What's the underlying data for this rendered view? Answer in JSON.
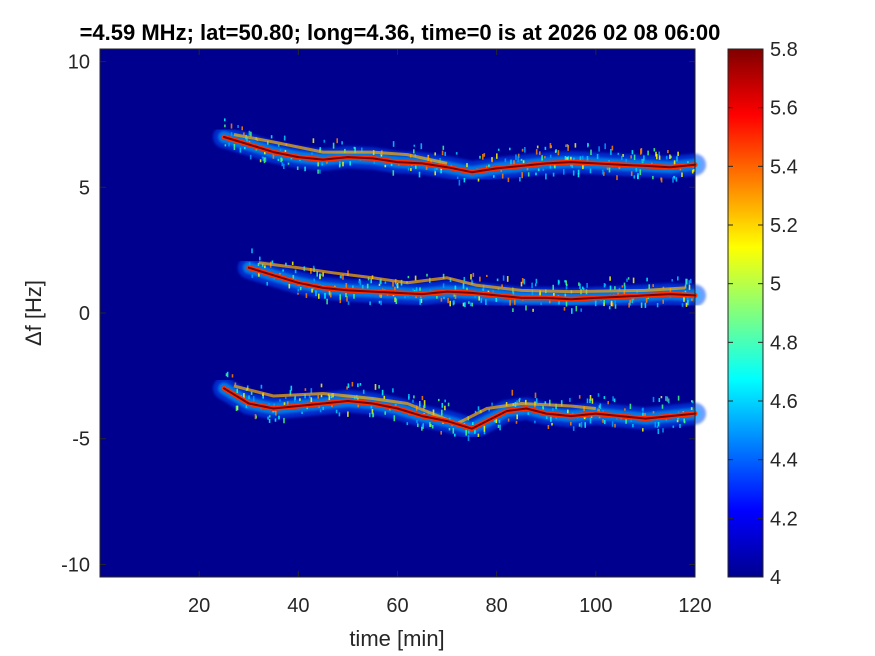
{
  "chart_data": {
    "type": "heatmap",
    "title": "=4.59 MHz;  lat=50.80; long=4.36, time=0 is at 2026 02 08 06:00",
    "xlabel": "time [min]",
    "ylabel": "Δf [Hz]",
    "xlim": [
      0,
      120
    ],
    "ylim": [
      -10.5,
      10.5
    ],
    "xticks": [
      20,
      40,
      60,
      80,
      100,
      120
    ],
    "yticks": [
      10,
      5,
      0,
      -5,
      -10
    ],
    "colorbar": {
      "colormap": "jet",
      "range": [
        4,
        5.8
      ],
      "ticks": [
        5.8,
        5.6,
        5.4,
        5.2,
        5,
        4.8,
        4.6,
        4.4,
        4.2,
        4
      ]
    },
    "background_color": "#00008f",
    "traces": [
      {
        "name": "",
        "start": 25,
        "end": 120,
        "points": [
          [
            25,
            7.0
          ],
          [
            30,
            6.7
          ],
          [
            35,
            6.4
          ],
          [
            40,
            6.2
          ],
          [
            45,
            6.1
          ],
          [
            50,
            6.2
          ],
          [
            55,
            6.15
          ],
          [
            60,
            6.0
          ],
          [
            65,
            5.95
          ],
          [
            70,
            5.8
          ],
          [
            75,
            5.6
          ],
          [
            80,
            5.75
          ],
          [
            85,
            5.85
          ],
          [
            90,
            5.95
          ],
          [
            95,
            6.0
          ],
          [
            100,
            5.95
          ],
          [
            105,
            5.9
          ],
          [
            110,
            5.85
          ],
          [
            115,
            5.8
          ],
          [
            120,
            5.9
          ]
        ],
        "secondary_points": [
          [
            27,
            7.1
          ],
          [
            35,
            6.8
          ],
          [
            45,
            6.4
          ],
          [
            55,
            6.4
          ],
          [
            62,
            6.3
          ],
          [
            70,
            5.95
          ]
        ]
      },
      {
        "name": "",
        "start": 30,
        "end": 120,
        "points": [
          [
            30,
            1.8
          ],
          [
            35,
            1.5
          ],
          [
            40,
            1.2
          ],
          [
            45,
            1.0
          ],
          [
            50,
            0.9
          ],
          [
            55,
            0.85
          ],
          [
            60,
            0.8
          ],
          [
            65,
            0.75
          ],
          [
            70,
            0.85
          ],
          [
            75,
            0.8
          ],
          [
            80,
            0.7
          ],
          [
            85,
            0.6
          ],
          [
            90,
            0.6
          ],
          [
            95,
            0.55
          ],
          [
            100,
            0.6
          ],
          [
            105,
            0.65
          ],
          [
            110,
            0.7
          ],
          [
            115,
            0.75
          ],
          [
            120,
            0.7
          ]
        ],
        "secondary_points": [
          [
            32,
            2.0
          ],
          [
            40,
            1.8
          ],
          [
            47,
            1.6
          ],
          [
            55,
            1.4
          ],
          [
            62,
            1.2
          ],
          [
            70,
            1.4
          ],
          [
            76,
            1.1
          ],
          [
            85,
            0.9
          ],
          [
            95,
            0.85
          ],
          [
            110,
            0.9
          ],
          [
            118,
            1.0
          ]
        ]
      },
      {
        "name": "",
        "start": 25,
        "end": 120,
        "points": [
          [
            25,
            -3.0
          ],
          [
            30,
            -3.6
          ],
          [
            35,
            -3.8
          ],
          [
            40,
            -3.7
          ],
          [
            45,
            -3.6
          ],
          [
            50,
            -3.5
          ],
          [
            55,
            -3.6
          ],
          [
            60,
            -3.8
          ],
          [
            65,
            -4.1
          ],
          [
            70,
            -4.3
          ],
          [
            75,
            -4.6
          ],
          [
            78,
            -4.3
          ],
          [
            82,
            -3.9
          ],
          [
            86,
            -3.8
          ],
          [
            90,
            -4.0
          ],
          [
            95,
            -4.1
          ],
          [
            100,
            -4.0
          ],
          [
            105,
            -4.1
          ],
          [
            110,
            -4.2
          ],
          [
            115,
            -4.1
          ],
          [
            120,
            -4.0
          ]
        ],
        "secondary_points": [
          [
            27,
            -2.9
          ],
          [
            35,
            -3.3
          ],
          [
            45,
            -3.2
          ],
          [
            55,
            -3.4
          ],
          [
            62,
            -3.6
          ],
          [
            72,
            -4.4
          ],
          [
            78,
            -3.8
          ],
          [
            85,
            -3.6
          ],
          [
            95,
            -3.7
          ],
          [
            100,
            -3.8
          ]
        ]
      }
    ]
  }
}
